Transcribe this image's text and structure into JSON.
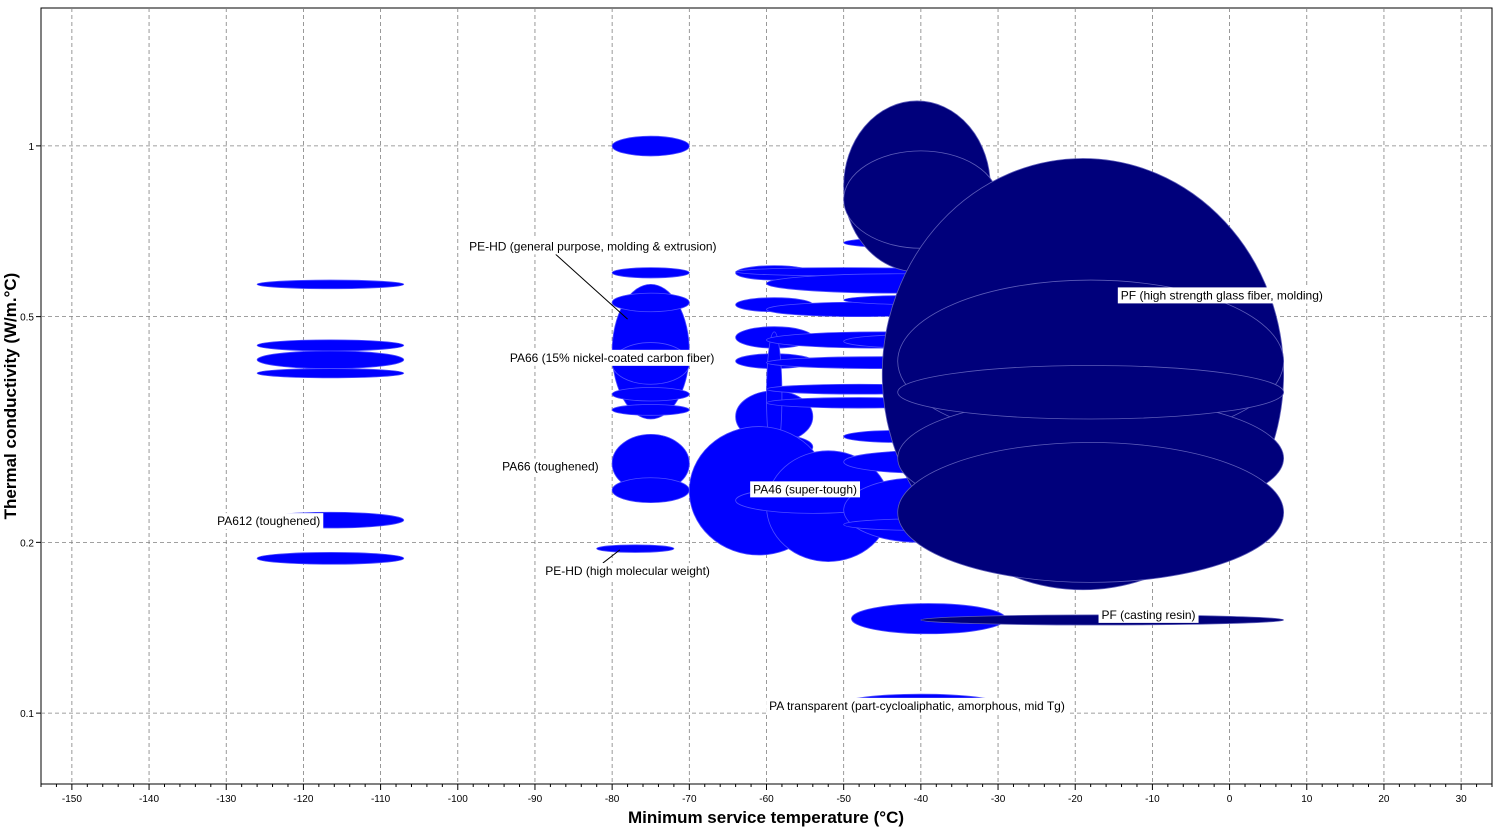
{
  "chart_data": {
    "type": "scatter",
    "mark_shape": "ellipse",
    "xlabel": "Minimum service temperature (°C)",
    "ylabel": "Thermal conductivity (W/m.°C)",
    "x_scale": "linear",
    "y_scale": "log",
    "xlim": [
      -154,
      34
    ],
    "ylim": [
      0.075,
      1.75
    ],
    "x_ticks": [
      -150,
      -140,
      -130,
      -120,
      -110,
      -100,
      -90,
      -80,
      -70,
      -60,
      -50,
      -40,
      -30,
      -20,
      -10,
      0,
      10,
      20,
      30
    ],
    "y_ticks": [
      0.1,
      0.2,
      0.5,
      1
    ],
    "y_tick_labels": [
      "0.1",
      "0.2",
      "0.5",
      "1"
    ],
    "grid": true,
    "colors": {
      "light_bubble": "#0000ff",
      "dark_bubble": "#00007b",
      "grid": "#808080",
      "label_bg": "#ffffff"
    },
    "bubbles": [
      {
        "x": [
          -126,
          -107
        ],
        "y": [
          0.56,
          0.58
        ],
        "color": "light"
      },
      {
        "x": [
          -126,
          -107
        ],
        "y": [
          0.435,
          0.455
        ],
        "color": "light"
      },
      {
        "x": [
          -126,
          -107
        ],
        "y": [
          0.405,
          0.435
        ],
        "color": "light"
      },
      {
        "x": [
          -126,
          -107
        ],
        "y": [
          0.39,
          0.405
        ],
        "color": "light"
      },
      {
        "x": [
          -126,
          -107
        ],
        "y": [
          0.212,
          0.226
        ],
        "color": "light"
      },
      {
        "x": [
          -126,
          -107
        ],
        "y": [
          0.183,
          0.192
        ],
        "color": "light"
      },
      {
        "x": [
          -80,
          -70
        ],
        "y": [
          0.96,
          1.04
        ],
        "color": "light"
      },
      {
        "x": [
          -80,
          -70
        ],
        "y": [
          0.585,
          0.61
        ],
        "color": "light"
      },
      {
        "x": [
          -80,
          -70
        ],
        "y": [
          0.33,
          0.57
        ],
        "color": "light"
      },
      {
        "x": [
          -80,
          -70
        ],
        "y": [
          0.51,
          0.55
        ],
        "color": "light"
      },
      {
        "x": [
          -80,
          -70
        ],
        "y": [
          0.38,
          0.45
        ],
        "color": "light"
      },
      {
        "x": [
          -80,
          -70
        ],
        "y": [
          0.355,
          0.375
        ],
        "color": "light"
      },
      {
        "x": [
          -80,
          -70
        ],
        "y": [
          0.335,
          0.35
        ],
        "color": "light"
      },
      {
        "x": [
          -80,
          -70
        ],
        "y": [
          0.245,
          0.31
        ],
        "color": "light"
      },
      {
        "x": [
          -80,
          -70
        ],
        "y": [
          0.235,
          0.26
        ],
        "color": "light"
      },
      {
        "x": [
          -82,
          -72
        ],
        "y": [
          0.192,
          0.198
        ],
        "color": "light"
      },
      {
        "x": [
          -64,
          -54
        ],
        "y": [
          0.58,
          0.615
        ],
        "color": "light"
      },
      {
        "x": [
          -64,
          -54
        ],
        "y": [
          0.51,
          0.54
        ],
        "color": "light"
      },
      {
        "x": [
          -64,
          -54
        ],
        "y": [
          0.44,
          0.48
        ],
        "color": "light"
      },
      {
        "x": [
          -64,
          -54
        ],
        "y": [
          0.405,
          0.43
        ],
        "color": "light"
      },
      {
        "x": [
          -64,
          -54
        ],
        "y": [
          0.3,
          0.37
        ],
        "color": "light"
      },
      {
        "x": [
          -64,
          -54
        ],
        "y": [
          0.28,
          0.31
        ],
        "color": "light"
      },
      {
        "x": [
          -64,
          -54
        ],
        "y": [
          0.255,
          0.275
        ],
        "color": "light"
      },
      {
        "x": [
          -60,
          -58
        ],
        "y": [
          0.28,
          0.47
        ],
        "color": "light"
      },
      {
        "x": [
          -70,
          -52
        ],
        "y": [
          0.19,
          0.32
        ],
        "color": "light"
      },
      {
        "x": [
          -60,
          -44
        ],
        "y": [
          0.185,
          0.29
        ],
        "color": "light"
      },
      {
        "x": [
          -64,
          -44
        ],
        "y": [
          0.225,
          0.25
        ],
        "color": "light"
      },
      {
        "x": [
          -64,
          -36
        ],
        "y": [
          0.59,
          0.61
        ],
        "color": "light"
      },
      {
        "x": [
          -60,
          -26
        ],
        "y": [
          0.55,
          0.595
        ],
        "color": "light"
      },
      {
        "x": [
          -60,
          -36
        ],
        "y": [
          0.5,
          0.53
        ],
        "color": "light"
      },
      {
        "x": [
          -60,
          -30
        ],
        "y": [
          0.44,
          0.47
        ],
        "color": "light"
      },
      {
        "x": [
          -60,
          -30
        ],
        "y": [
          0.405,
          0.425
        ],
        "color": "light"
      },
      {
        "x": [
          -60,
          -36
        ],
        "y": [
          0.365,
          0.38
        ],
        "color": "light"
      },
      {
        "x": [
          -60,
          -36
        ],
        "y": [
          0.345,
          0.36
        ],
        "color": "light"
      },
      {
        "x": [
          -50,
          -30
        ],
        "y": [
          0.2,
          0.26
        ],
        "color": "light"
      },
      {
        "x": [
          -50,
          -36
        ],
        "y": [
          0.3,
          0.315
        ],
        "color": "light"
      },
      {
        "x": [
          -50,
          -30
        ],
        "y": [
          0.265,
          0.29
        ],
        "color": "light"
      },
      {
        "x": [
          -50,
          -30
        ],
        "y": [
          0.21,
          0.22
        ],
        "color": "light"
      },
      {
        "x": [
          -50,
          -30
        ],
        "y": [
          0.66,
          0.69
        ],
        "color": "light"
      },
      {
        "x": [
          -50,
          -30
        ],
        "y": [
          0.525,
          0.545
        ],
        "color": "light"
      },
      {
        "x": [
          -50,
          -30
        ],
        "y": [
          0.44,
          0.465
        ],
        "color": "light"
      },
      {
        "x": [
          -25.5,
          -24.5
        ],
        "y": [
          0.42,
          0.47
        ],
        "color": "light"
      },
      {
        "x": [
          -49,
          -29
        ],
        "y": [
          0.138,
          0.156
        ],
        "color": "light"
      },
      {
        "x": [
          -50,
          -30
        ],
        "y": [
          0.1,
          0.108
        ],
        "color": "light"
      },
      {
        "x": [
          -50,
          -31
        ],
        "y": [
          0.6,
          1.2
        ],
        "color": "dark"
      },
      {
        "x": [
          -50,
          -30
        ],
        "y": [
          0.66,
          0.98
        ],
        "color": "dark"
      },
      {
        "x": [
          -45,
          7
        ],
        "y": [
          0.165,
          0.95
        ],
        "color": "dark"
      },
      {
        "x": [
          -43,
          7
        ],
        "y": [
          0.3,
          0.58
        ],
        "color": "dark"
      },
      {
        "x": [
          -43,
          7
        ],
        "y": [
          0.22,
          0.36
        ],
        "color": "dark"
      },
      {
        "x": [
          -43,
          7
        ],
        "y": [
          0.17,
          0.3
        ],
        "color": "dark"
      },
      {
        "x": [
          -43,
          7
        ],
        "y": [
          0.33,
          0.41
        ],
        "color": "dark"
      },
      {
        "x": [
          -40,
          7
        ],
        "y": [
          0.143,
          0.149
        ],
        "color": "dark"
      }
    ],
    "annotations": [
      {
        "label": "PE-HD (general purpose, molding & extrusion)",
        "box": [
          -82.5,
          0.665
        ],
        "target": [
          -78,
          0.495
        ]
      },
      {
        "label": "PA66 (15% nickel-coated carbon fiber)",
        "box": [
          -80,
          0.423
        ]
      },
      {
        "label": "PA66 (toughened)",
        "box": [
          -88,
          0.272
        ]
      },
      {
        "label": "PA612 (toughened)",
        "box": [
          -124.5,
          0.218
        ]
      },
      {
        "label": "PE-HD (high molecular weight)",
        "box": [
          -78,
          0.178
        ],
        "target": [
          -79,
          0.194
        ]
      },
      {
        "label": "PA46 (super-tough)",
        "box": [
          -55,
          0.248
        ]
      },
      {
        "label": "PF (high strength glass fiber, molding)",
        "box": [
          -1,
          0.545
        ]
      },
      {
        "label": "PF (casting resin)",
        "box": [
          -10.5,
          0.149
        ]
      },
      {
        "label": "PA transparent (part-cycloaliphatic, amorphous, mid Tg)",
        "box": [
          -40.5,
          0.103
        ]
      }
    ]
  }
}
